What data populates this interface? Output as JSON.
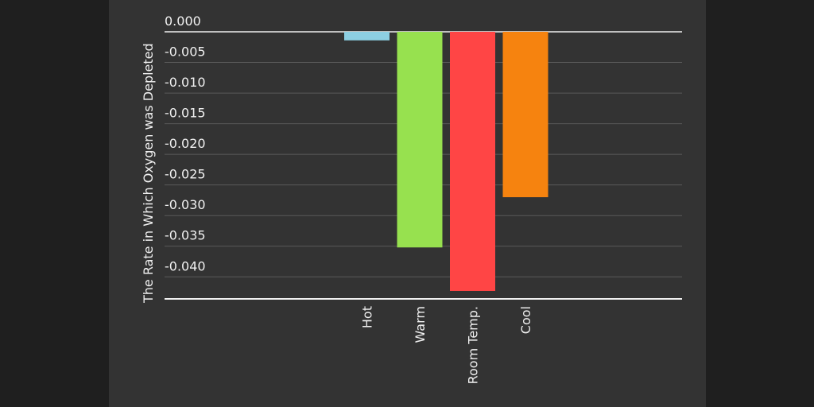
{
  "chart_data": {
    "type": "bar",
    "y_label": "The Rate in Which Oxygen was Depleted",
    "categories": [
      "Hot",
      "Warm",
      "Room Temp.",
      "Cool"
    ],
    "values": [
      -0.0014,
      -0.0352,
      -0.0423,
      -0.027
    ],
    "colors": [
      "#8dcfe2",
      "#97e14f",
      "#ff4545",
      "#f6830f"
    ],
    "ylim": [
      -0.0436,
      0
    ],
    "yticks": [
      {
        "value": 0,
        "label": "0.000"
      },
      {
        "value": -0.005,
        "label": "-0.005"
      },
      {
        "value": -0.01,
        "label": "-0.010"
      },
      {
        "value": -0.015,
        "label": "-0.015"
      },
      {
        "value": -0.02,
        "label": "-0.020"
      },
      {
        "value": -0.025,
        "label": "-0.025"
      },
      {
        "value": -0.03,
        "label": "-0.030"
      },
      {
        "value": -0.035,
        "label": "-0.035"
      },
      {
        "value": -0.04,
        "label": "-0.040"
      }
    ],
    "grid": true
  }
}
